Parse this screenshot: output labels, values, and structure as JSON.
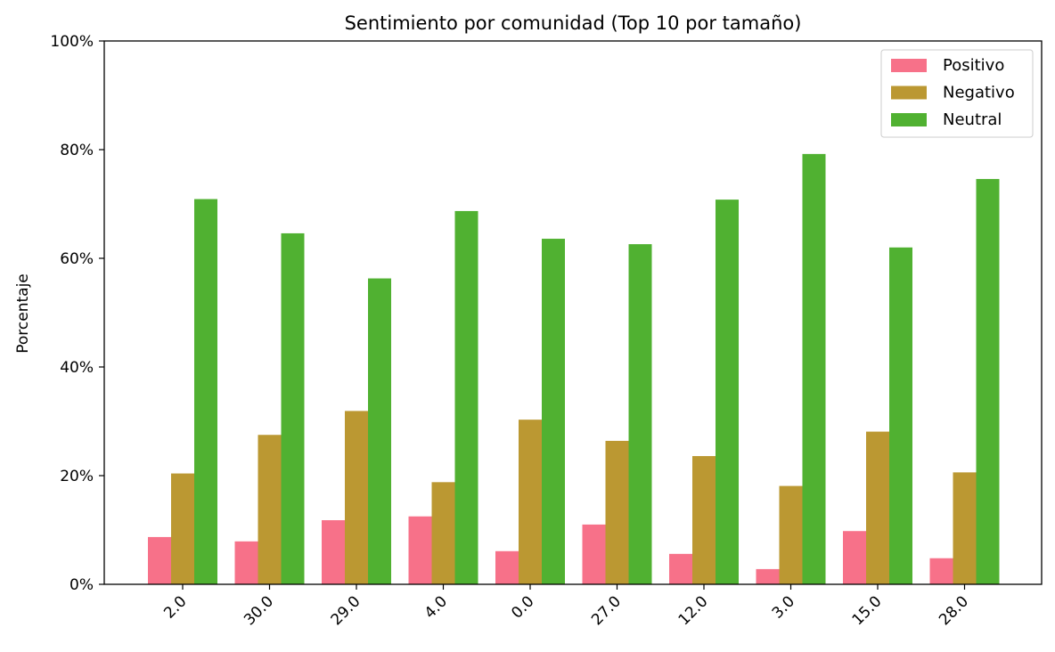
{
  "chart_data": {
    "type": "bar",
    "title": "Sentimiento por comunidad (Top 10 por tamaño)",
    "xlabel": "",
    "ylabel": "Porcentaje",
    "categories": [
      "2.0",
      "30.0",
      "29.0",
      "4.0",
      "0.0",
      "27.0",
      "12.0",
      "3.0",
      "15.0",
      "28.0"
    ],
    "series": [
      {
        "name": "Positivo",
        "color": "#f77189",
        "values": [
          8.7,
          7.9,
          11.8,
          12.5,
          6.1,
          11.0,
          5.6,
          2.8,
          9.8,
          4.8
        ]
      },
      {
        "name": "Negativo",
        "color": "#bb9832",
        "values": [
          20.4,
          27.5,
          31.9,
          18.8,
          30.3,
          26.4,
          23.6,
          18.1,
          28.1,
          20.6
        ]
      },
      {
        "name": "Neutral",
        "color": "#50b131",
        "values": [
          70.9,
          64.6,
          56.3,
          68.7,
          63.6,
          62.6,
          70.8,
          79.2,
          62.0,
          74.6
        ]
      }
    ],
    "ylim": [
      0,
      100
    ],
    "yticks": [
      "0%",
      "20%",
      "40%",
      "60%",
      "80%",
      "100%"
    ],
    "grid": false,
    "legend": "top-right"
  }
}
